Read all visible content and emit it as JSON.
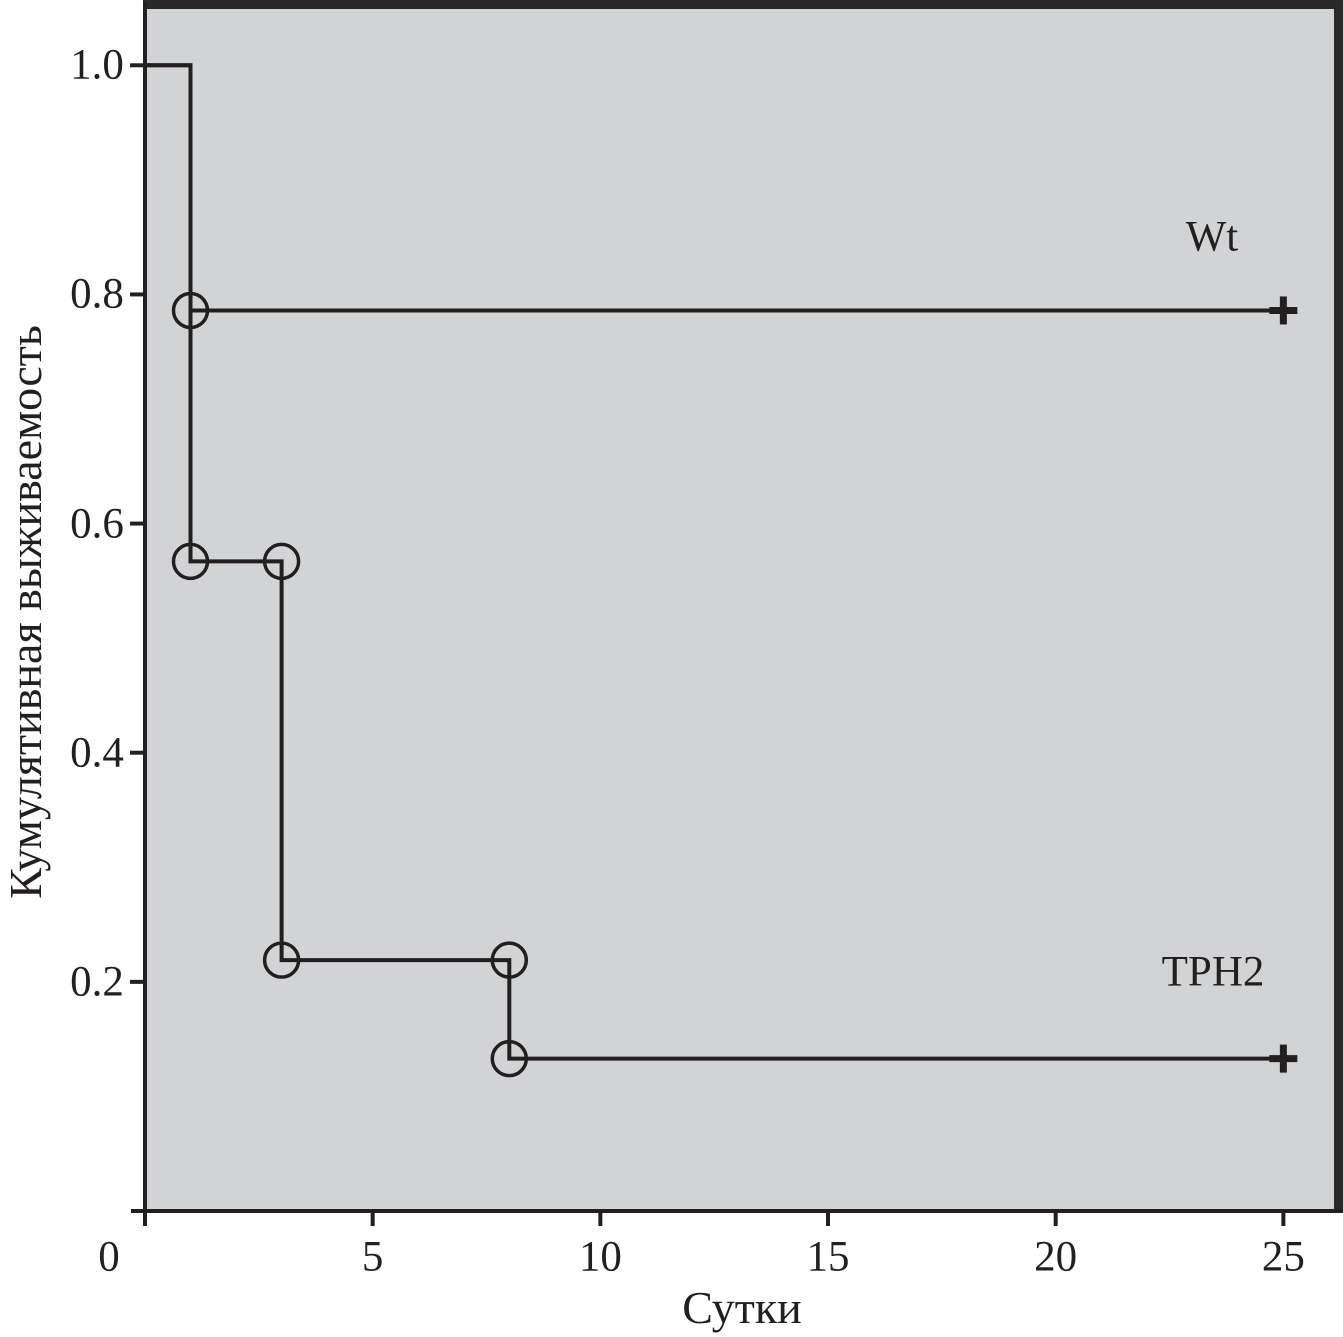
{
  "figure": {
    "background": "#ffffff",
    "frame_color": "#2b2829",
    "text_color": "#231f20"
  },
  "chart_data": {
    "type": "line",
    "subtype": "kaplan-meier-step",
    "title": "",
    "xlabel": "Сутки",
    "ylabel": "Кумулятивная выживаемость",
    "xlim": [
      0,
      26.2
    ],
    "ylim": [
      0,
      1.05
    ],
    "x_ticks": [
      0,
      5,
      10,
      15,
      20,
      25
    ],
    "x_tick_labels": [
      "0",
      "5",
      "10",
      "15",
      "20",
      "25"
    ],
    "y_ticks": [
      1.0,
      0.8,
      0.6,
      0.4,
      0.2
    ],
    "y_tick_labels": [
      "1.0",
      "0.8",
      "0.6",
      "0.4",
      "0.2"
    ],
    "grid": false,
    "legend_position": "inline-right",
    "plot_bg": "#d2d3d5",
    "line_color": "#231f20",
    "series": [
      {
        "name": "Wt",
        "label": "Wt",
        "points": [
          [
            0,
            1.0
          ],
          [
            1,
            1.0
          ],
          [
            1,
            0.786
          ],
          [
            25,
            0.786
          ]
        ],
        "event_markers": [
          [
            1,
            0.786
          ]
        ],
        "censor_marks": [
          [
            25,
            0.786
          ]
        ]
      },
      {
        "name": "TPH2",
        "label": "TPH2",
        "points": [
          [
            0,
            1.0
          ],
          [
            1,
            1.0
          ],
          [
            1,
            0.567
          ],
          [
            3,
            0.567
          ],
          [
            3,
            0.219
          ],
          [
            8,
            0.219
          ],
          [
            8,
            0.133
          ],
          [
            25,
            0.133
          ]
        ],
        "event_markers": [
          [
            1,
            0.567
          ],
          [
            3,
            0.567
          ],
          [
            3,
            0.219
          ],
          [
            8,
            0.219
          ],
          [
            8,
            0.133
          ]
        ],
        "censor_marks": [
          [
            25,
            0.133
          ]
        ]
      }
    ]
  }
}
